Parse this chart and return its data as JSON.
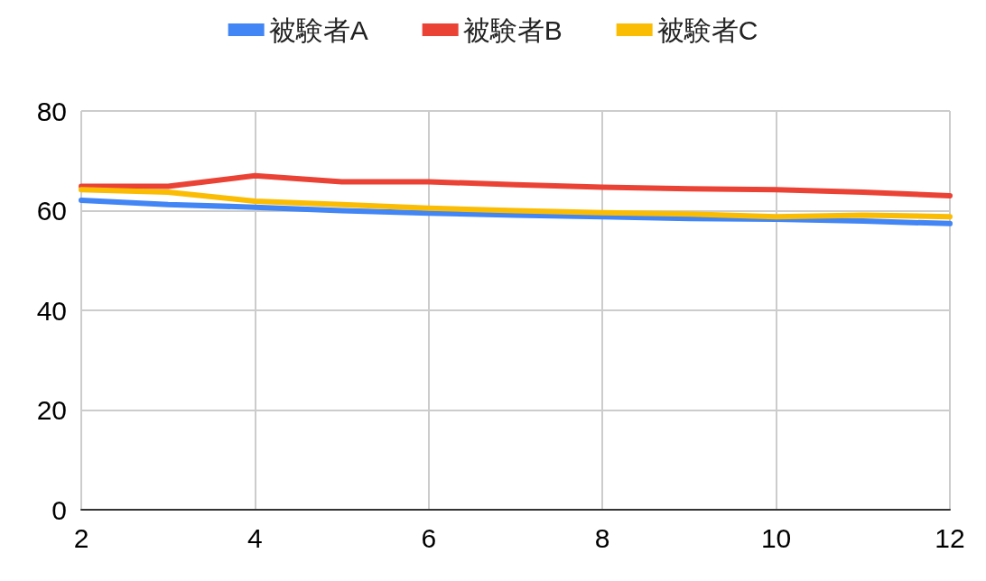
{
  "chart_data": {
    "type": "line",
    "x": [
      2,
      3,
      4,
      5,
      6,
      7,
      8,
      9,
      10,
      11,
      12
    ],
    "series": [
      {
        "name": "被験者A",
        "color": "#4285f4",
        "values": [
          62.1,
          61.2,
          60.7,
          60,
          59.5,
          59.1,
          58.8,
          58.4,
          58.3,
          57.9,
          57.4
        ]
      },
      {
        "name": "被験者B",
        "color": "#ea4335",
        "values": [
          64.9,
          64.9,
          67,
          65.8,
          65.8,
          65.2,
          64.7,
          64.4,
          64.2,
          63.7,
          63
        ]
      },
      {
        "name": "被験者C",
        "color": "#fbbc04",
        "values": [
          64.2,
          63.7,
          61.9,
          61.2,
          60.5,
          60,
          59.6,
          59.3,
          58.8,
          59.1,
          58.8
        ]
      }
    ],
    "xlim": [
      2,
      12
    ],
    "xticks": [
      2,
      4,
      6,
      8,
      10,
      12
    ],
    "ylim": [
      0,
      80
    ],
    "yticks": [
      0,
      20,
      40,
      60,
      80
    ],
    "grid": true,
    "legend": "top",
    "marker": "none",
    "line_style": "solid"
  }
}
